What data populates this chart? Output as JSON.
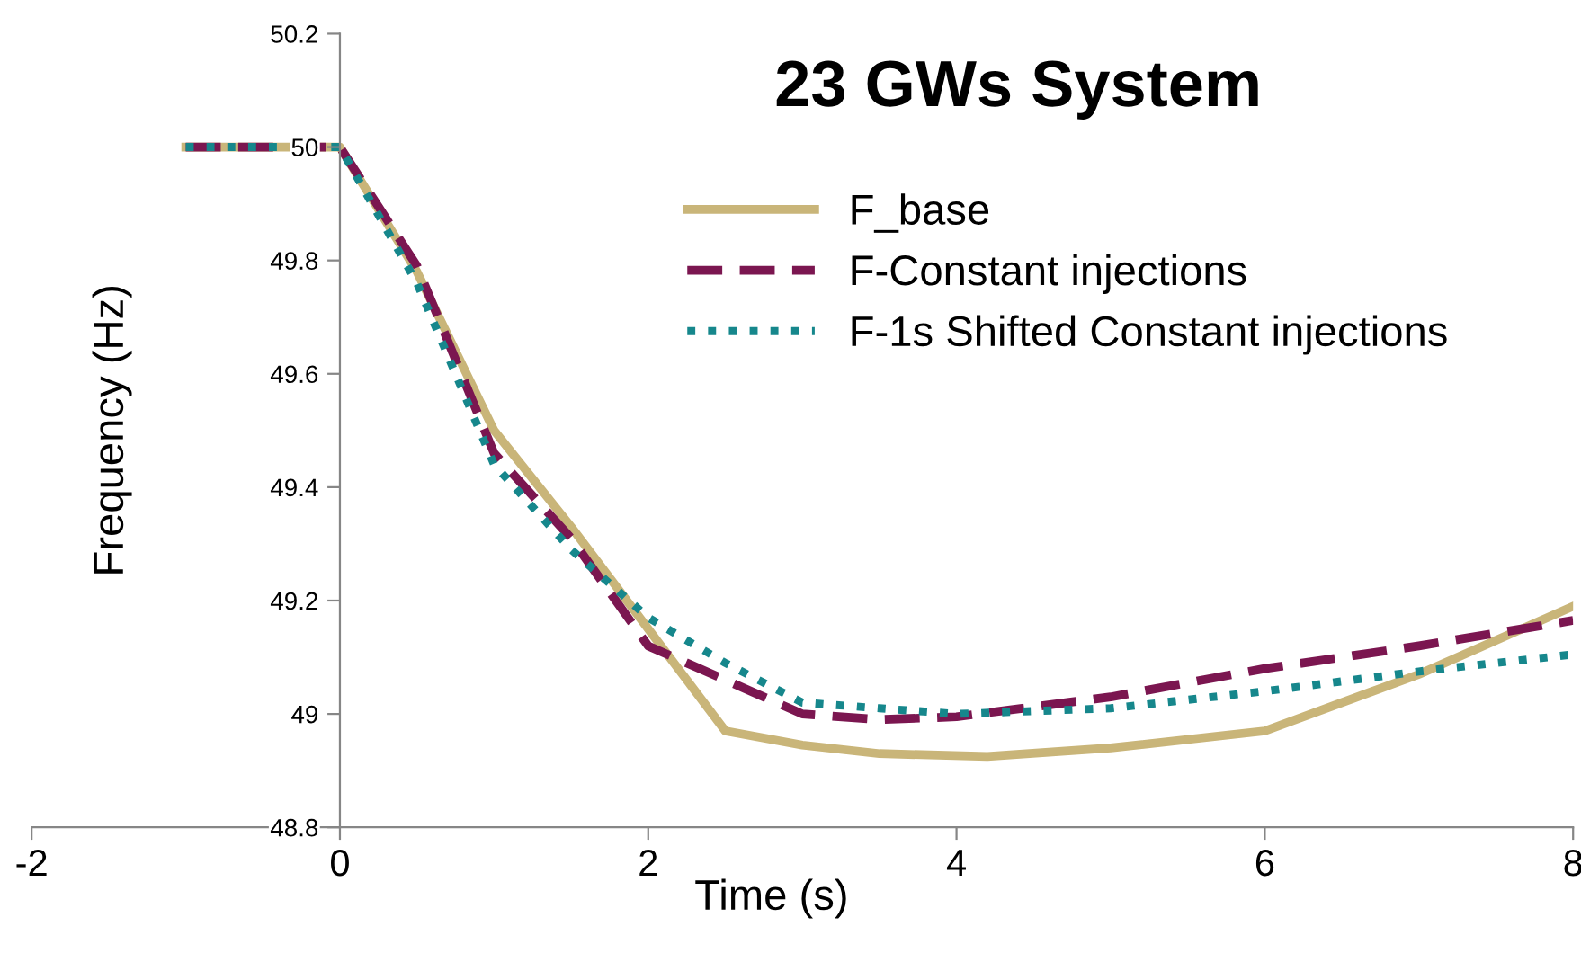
{
  "chart_data": {
    "type": "line",
    "title": "23 GWs System",
    "xlabel": "Time (s)",
    "ylabel": "Frequency (Hz)",
    "xlim": [
      -2,
      8
    ],
    "xticks": [
      -2,
      0,
      2,
      4,
      6,
      8
    ],
    "ylim": [
      48.8,
      50.2
    ],
    "yticks": [
      48.8,
      49,
      49.2,
      49.4,
      49.6,
      49.8,
      50,
      50.2
    ],
    "grid": false,
    "legend": "top right",
    "series": [
      {
        "name": "F_base",
        "color": "#c9b579",
        "line_style": "solid",
        "x": [
          -1,
          0,
          0.5,
          1,
          1.5,
          2,
          2.5,
          3,
          3.5,
          4.2,
          5,
          6,
          7,
          8
        ],
        "values": [
          50,
          50,
          49.78,
          49.5,
          49.33,
          49.15,
          48.97,
          48.945,
          48.93,
          48.925,
          48.94,
          48.97,
          49.07,
          49.19
        ]
      },
      {
        "name": "F-Constant injections",
        "color": "#7b1650",
        "line_style": "dashed",
        "x": [
          -1,
          0,
          0.5,
          1,
          1.5,
          2,
          2.5,
          3,
          3.5,
          4,
          5,
          6,
          7,
          8
        ],
        "values": [
          50,
          50,
          49.79,
          49.46,
          49.31,
          49.12,
          49.06,
          49.0,
          48.99,
          48.995,
          49.03,
          49.08,
          49.12,
          49.165
        ]
      },
      {
        "name": "F-1s Shifted Constant injections",
        "color": "#16878c",
        "line_style": "dotted",
        "x": [
          -1,
          0,
          0.5,
          1,
          1.5,
          2,
          2.5,
          3,
          3.5,
          4,
          5,
          6,
          7,
          8
        ],
        "values": [
          50,
          50,
          49.76,
          49.44,
          49.29,
          49.17,
          49.09,
          49.02,
          49.01,
          49.0,
          49.01,
          49.04,
          49.075,
          49.105
        ]
      }
    ]
  }
}
